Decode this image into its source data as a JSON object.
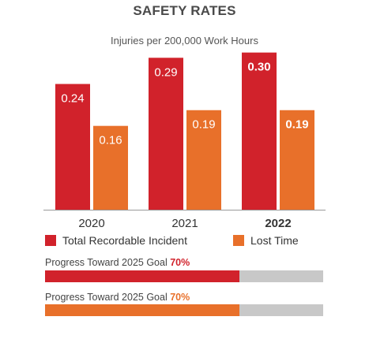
{
  "chart_data": {
    "type": "bar",
    "title": "SAFETY RATES",
    "subtitle": "Injuries per 200,000 Work Hours",
    "categories": [
      "2020",
      "2021",
      "2022"
    ],
    "series": [
      {
        "name": "Total Recordable Incident",
        "values": [
          0.24,
          0.29,
          0.3
        ],
        "labels": [
          "0.24",
          "0.29",
          "0.30"
        ],
        "color": "#d1222b"
      },
      {
        "name": "Lost Time",
        "values": [
          0.16,
          0.19,
          0.19
        ],
        "labels": [
          "0.16",
          "0.19",
          "0.19"
        ],
        "color": "#e8702a"
      }
    ],
    "ylim": [
      0,
      0.31
    ],
    "grid": false,
    "legend_placement": "bottom",
    "bold_category": "2022"
  },
  "progress": [
    {
      "label": "Progress Toward 2025 Goal",
      "percent_text": "70%",
      "fraction": 0.7,
      "color": "#d1222b",
      "text_color": "#d1222b"
    },
    {
      "label": "Progress Toward 2025 Goal",
      "percent_text": "70%",
      "fraction": 0.7,
      "color": "#e8702a",
      "text_color": "#e8702a"
    }
  ],
  "colors": {
    "track": "#c8c8c8",
    "axis": "#999999"
  }
}
